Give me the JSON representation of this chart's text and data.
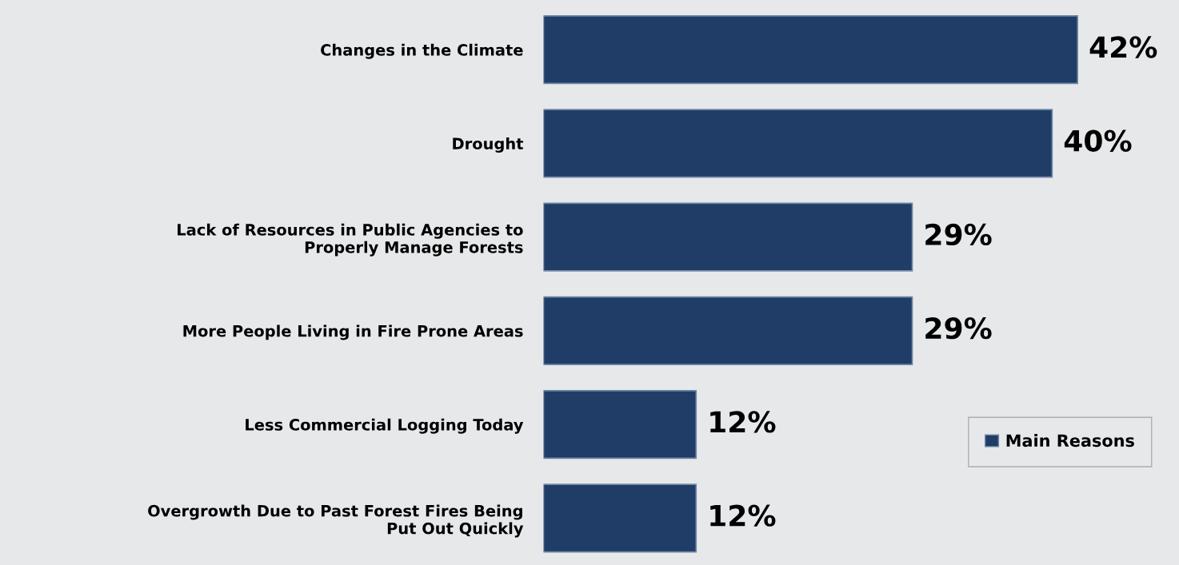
{
  "chart_data": {
    "type": "bar",
    "orientation": "horizontal",
    "categories": [
      "Changes in the Climate",
      "Drought",
      "Lack of Resources in Public Agencies to\nProperly Manage Forests",
      "More People Living in Fire Prone Areas",
      "Less Commercial Logging Today",
      "Overgrowth Due to Past Forest Fires Being\nPut Out Quickly"
    ],
    "series": [
      {
        "name": "Main Reasons",
        "color": "#1f3d66",
        "values": [
          42,
          40,
          29,
          29,
          12,
          12
        ],
        "value_labels": [
          "42%",
          "40%",
          "29%",
          "29%",
          "12%",
          "12%"
        ]
      }
    ],
    "legend": "bottom right",
    "grid": false,
    "tick_labels": "y"
  }
}
